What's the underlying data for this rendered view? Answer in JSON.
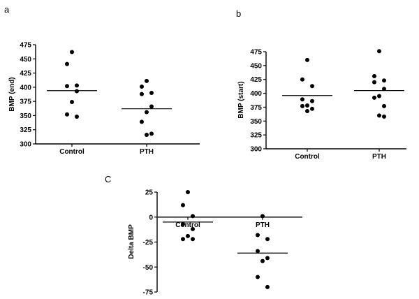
{
  "chart_data": [
    {
      "id": "a",
      "type": "scatter",
      "panel_label": "a",
      "ylabel": "BMP (end)",
      "xlabel": "",
      "categories": [
        "Control",
        "PTH"
      ],
      "ylim": [
        300,
        475
      ],
      "yticks": [
        300,
        325,
        350,
        375,
        400,
        425,
        450,
        475
      ],
      "grid": false,
      "series": [
        {
          "category": "Control",
          "values": [
            462,
            441,
            403,
            402,
            393,
            374,
            352,
            348
          ],
          "mean": 394
        },
        {
          "category": "PTH",
          "values": [
            411,
            401,
            390,
            388,
            366,
            356,
            339,
            318,
            316
          ],
          "mean": 362
        }
      ]
    },
    {
      "id": "b",
      "type": "scatter",
      "panel_label": "b",
      "ylabel": "BMP (start)",
      "xlabel": "",
      "categories": [
        "Control",
        "PTH"
      ],
      "ylim": [
        300,
        475
      ],
      "yticks": [
        300,
        325,
        350,
        375,
        400,
        425,
        450,
        475
      ],
      "grid": false,
      "series": [
        {
          "category": "Control",
          "values": [
            460,
            425,
            413,
            389,
            386,
            378,
            377,
            372,
            368
          ],
          "mean": 396
        },
        {
          "category": "PTH",
          "values": [
            476,
            431,
            423,
            420,
            408,
            395,
            392,
            377,
            360,
            358
          ],
          "mean": 405
        }
      ]
    },
    {
      "id": "c",
      "type": "scatter",
      "panel_label": "C",
      "ylabel": "Delta BMP",
      "xlabel": "",
      "categories": [
        "Control",
        "PTH"
      ],
      "ylim": [
        -75,
        25
      ],
      "yticks": [
        -75,
        -50,
        -25,
        0,
        25
      ],
      "grid": false,
      "category_labels_at_zero": true,
      "series": [
        {
          "category": "Control",
          "values": [
            25,
            12,
            1,
            -7,
            -12,
            -19,
            -22,
            -22
          ],
          "mean": -5
        },
        {
          "category": "PTH",
          "values": [
            1,
            -18,
            -22,
            -34,
            -41,
            -44,
            -60,
            -70
          ],
          "mean": -36
        }
      ]
    }
  ]
}
